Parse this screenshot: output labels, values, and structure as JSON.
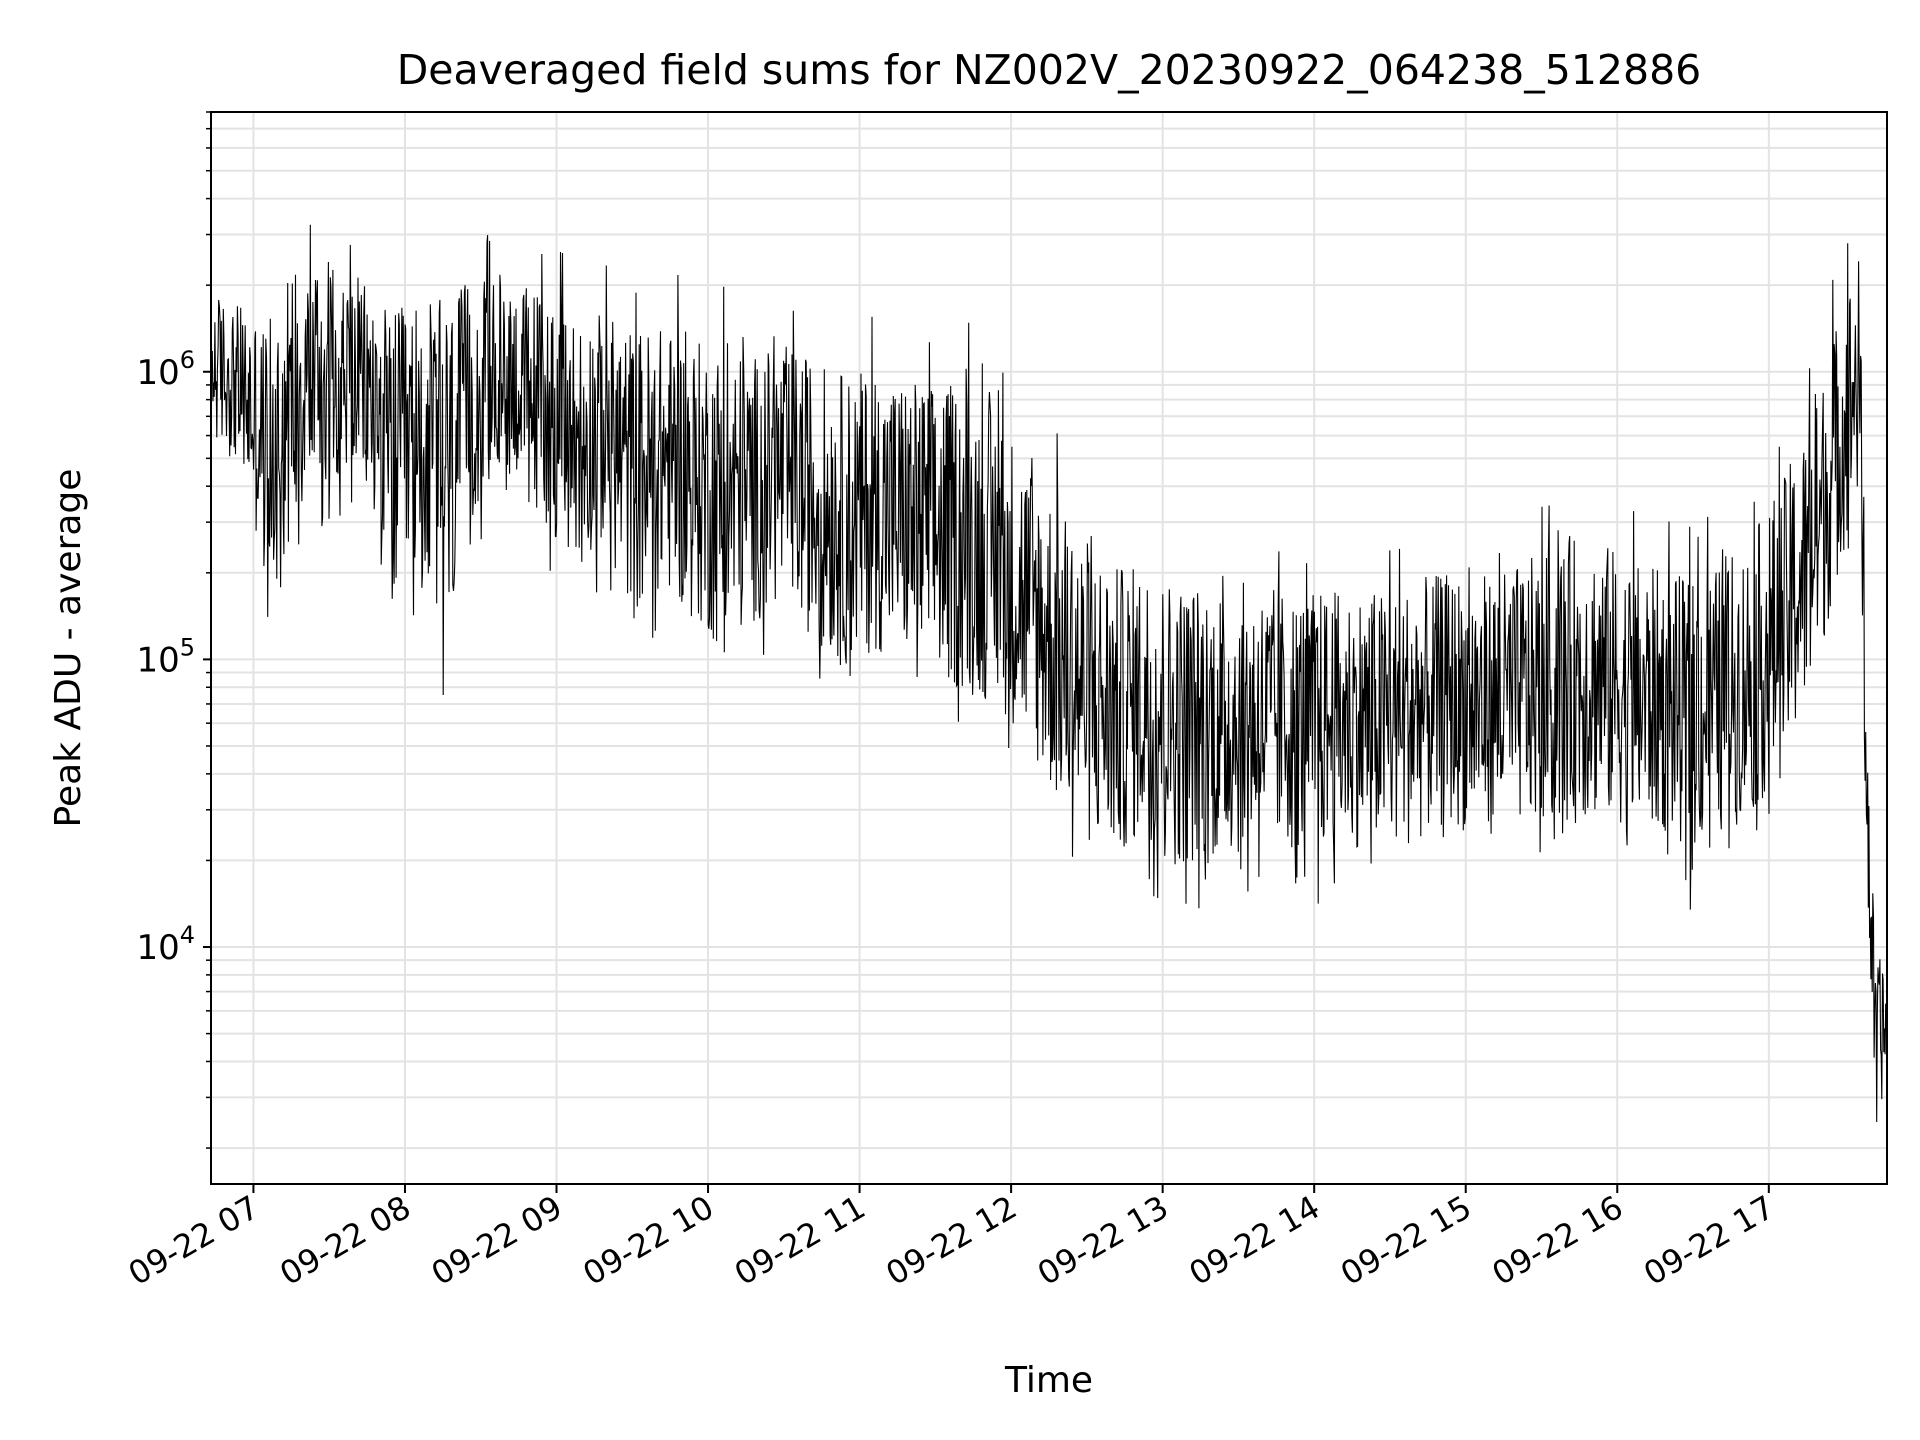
{
  "chart_data": {
    "type": "line",
    "title": "Deaveraged field sums for NZ002V_20230922_064238_512886",
    "xlabel": "Time",
    "ylabel": "Peak ADU - average",
    "yscale": "log",
    "grid": true,
    "x_tick_labels": [
      "09-22 07",
      "09-22 08",
      "09-22 09",
      "09-22 10",
      "09-22 11",
      "09-22 12",
      "09-22 13",
      "09-22 14",
      "09-22 15",
      "09-22 16",
      "09-22 17"
    ],
    "x_tick_hours": [
      7,
      8,
      9,
      10,
      11,
      12,
      13,
      14,
      15,
      16,
      17
    ],
    "xlim_hours": [
      6.72,
      17.78
    ],
    "y_tick_labels": [
      {
        "base": "10",
        "exp": "6",
        "value": 1000000
      },
      {
        "base": "10",
        "exp": "5",
        "value": 100000
      },
      {
        "base": "10",
        "exp": "4",
        "value": 10000
      }
    ],
    "ylim": [
      1500,
      8000000
    ],
    "line_color": "#000000",
    "series": [
      {
        "x_hours": [
          6.72,
          6.9,
          7.1,
          7.3,
          7.5,
          7.7,
          7.9,
          8.1,
          8.3,
          8.5,
          8.7,
          8.9,
          9.1,
          9.3,
          9.5,
          9.7,
          9.9,
          10.1,
          10.3,
          10.5,
          10.7,
          10.9,
          11.1,
          11.3,
          11.5,
          11.7,
          11.9,
          12.1,
          12.3,
          12.5,
          12.7,
          12.9,
          13.1,
          13.3,
          13.5,
          13.7,
          13.9,
          14.1,
          14.3,
          14.5,
          14.7,
          14.9,
          15.1,
          15.3,
          15.5,
          15.7,
          15.9,
          16.1,
          16.3,
          16.5,
          16.7,
          16.9,
          17.1,
          17.3,
          17.45,
          17.6,
          17.63,
          17.66,
          17.7,
          17.78
        ],
        "center": [
          1000000,
          900000,
          700000,
          1000000,
          1200000,
          1000000,
          800000,
          900000,
          1100000,
          1000000,
          1050000,
          1000000,
          900000,
          850000,
          800000,
          750000,
          700000,
          750000,
          700000,
          650000,
          600000,
          550000,
          550000,
          500000,
          500000,
          480000,
          420000,
          250000,
          180000,
          130000,
          100000,
          85000,
          70000,
          60000,
          58000,
          55000,
          55000,
          55000,
          55000,
          55000,
          58000,
          60000,
          62000,
          65000,
          75000,
          90000,
          85000,
          70000,
          65000,
          60000,
          70000,
          90000,
          160000,
          400000,
          800000,
          1000000,
          80000,
          20000,
          6000,
          5500
        ],
        "spread_down": [
          0.45,
          0.4,
          0.12,
          0.2,
          0.25,
          0.3,
          0.1,
          0.12,
          0.05,
          0.25,
          0.3,
          0.2,
          0.15,
          0.2,
          0.1,
          0.15,
          0.12,
          0.08,
          0.12,
          0.15,
          0.12,
          0.1,
          0.12,
          0.12,
          0.1,
          0.09,
          0.1,
          0.12,
          0.1,
          0.1,
          0.12,
          0.18,
          0.16,
          0.2,
          0.22,
          0.24,
          0.25,
          0.24,
          0.26,
          0.24,
          0.26,
          0.28,
          0.25,
          0.25,
          0.22,
          0.18,
          0.2,
          0.22,
          0.24,
          0.22,
          0.22,
          0.2,
          0.15,
          0.12,
          0.15,
          0.25,
          0.4,
          0.3,
          0.4,
          0.4
        ],
        "spread_up": [
          2.5,
          2.5,
          3.5,
          4.5,
          3.0,
          3.0,
          3.5,
          3.2,
          3.0,
          3.0,
          2.8,
          3.0,
          2.8,
          2.8,
          3.0,
          3.0,
          3.0,
          2.8,
          2.6,
          3.0,
          3.0,
          3.0,
          3.0,
          3.2,
          3.0,
          3.3,
          3.0,
          3.5,
          3.5,
          3.5,
          3.5,
          4.0,
          4.5,
          5.0,
          5.2,
          5.2,
          5.0,
          5.0,
          5.0,
          5.0,
          5.2,
          5.2,
          5.0,
          5.0,
          5.0,
          5.0,
          5.0,
          5.0,
          5.0,
          5.0,
          5.0,
          5.0,
          4.5,
          3.0,
          3.0,
          4.0,
          3.5,
          3.0,
          2.0,
          2.0
        ]
      }
    ]
  }
}
